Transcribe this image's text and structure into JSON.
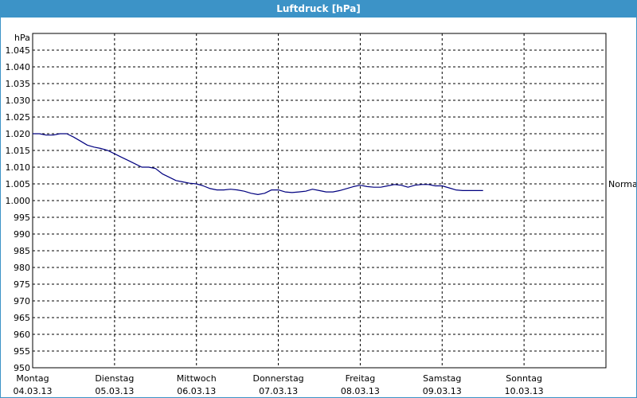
{
  "window": {
    "title": "Luftdruck [hPa]"
  },
  "colors": {
    "titlebar": "#3c93c7",
    "series": "#00007f",
    "grid": "#000000",
    "background": "#ffffff"
  },
  "chart_data": {
    "type": "line",
    "title": "Luftdruck [hPa]",
    "ylabel": "hPa",
    "xlabel": "",
    "ylim": [
      950,
      1050
    ],
    "yticks": [
      {
        "value": 950,
        "label": "950"
      },
      {
        "value": 955,
        "label": "955"
      },
      {
        "value": 960,
        "label": "960"
      },
      {
        "value": 965,
        "label": "965"
      },
      {
        "value": 970,
        "label": "970"
      },
      {
        "value": 975,
        "label": "975"
      },
      {
        "value": 980,
        "label": "980"
      },
      {
        "value": 985,
        "label": "985"
      },
      {
        "value": 990,
        "label": "990"
      },
      {
        "value": 995,
        "label": "995"
      },
      {
        "value": 1000,
        "label": "1.000"
      },
      {
        "value": 1005,
        "label": "1.005"
      },
      {
        "value": 1010,
        "label": "1.010"
      },
      {
        "value": 1015,
        "label": "1.015"
      },
      {
        "value": 1020,
        "label": "1.020"
      },
      {
        "value": 1025,
        "label": "1.025"
      },
      {
        "value": 1030,
        "label": "1.030"
      },
      {
        "value": 1035,
        "label": "1.035"
      },
      {
        "value": 1040,
        "label": "1.040"
      },
      {
        "value": 1045,
        "label": "1.045"
      }
    ],
    "xlim": [
      "04.03.13 00:00",
      "11.03.13 00:00"
    ],
    "xticks": [
      {
        "day": "Montag",
        "date": "04.03.13"
      },
      {
        "day": "Dienstag",
        "date": "05.03.13"
      },
      {
        "day": "Mittwoch",
        "date": "06.03.13"
      },
      {
        "day": "Donnerstag",
        "date": "07.03.13"
      },
      {
        "day": "Freitag",
        "date": "08.03.13"
      },
      {
        "day": "Samstag",
        "date": "09.03.13"
      },
      {
        "day": "Sonntag",
        "date": "10.03.13"
      }
    ],
    "grid": true,
    "reference": {
      "label": "Normal",
      "value": 1005
    },
    "series": [
      {
        "x": [
          "04.03.13 00:00",
          "04.03.13 02:00",
          "04.03.13 04:00",
          "04.03.13 06:00",
          "04.03.13 08:00",
          "04.03.13 10:00",
          "04.03.13 12:00",
          "04.03.13 14:00",
          "04.03.13 16:00",
          "04.03.13 18:00",
          "04.03.13 20:00",
          "04.03.13 22:00",
          "05.03.13 00:00",
          "05.03.13 02:00",
          "05.03.13 04:00",
          "05.03.13 06:00",
          "05.03.13 08:00",
          "05.03.13 10:00",
          "05.03.13 12:00",
          "05.03.13 14:00",
          "05.03.13 16:00",
          "05.03.13 18:00",
          "05.03.13 20:00",
          "05.03.13 22:00",
          "06.03.13 00:00",
          "06.03.13 02:00",
          "06.03.13 04:00",
          "06.03.13 06:00",
          "06.03.13 08:00",
          "06.03.13 10:00",
          "06.03.13 12:00",
          "06.03.13 14:00",
          "06.03.13 16:00",
          "06.03.13 18:00",
          "06.03.13 20:00",
          "06.03.13 22:00",
          "07.03.13 00:00",
          "07.03.13 02:00",
          "07.03.13 04:00",
          "07.03.13 06:00",
          "07.03.13 08:00",
          "07.03.13 10:00",
          "07.03.13 12:00",
          "07.03.13 14:00",
          "07.03.13 16:00",
          "07.03.13 18:00",
          "07.03.13 20:00",
          "07.03.13 22:00",
          "08.03.13 00:00",
          "08.03.13 02:00",
          "08.03.13 04:00",
          "08.03.13 06:00",
          "08.03.13 08:00",
          "08.03.13 10:00",
          "08.03.13 12:00",
          "08.03.13 14:00",
          "08.03.13 16:00",
          "08.03.13 18:00",
          "08.03.13 20:00",
          "08.03.13 22:00",
          "09.03.13 00:00",
          "09.03.13 02:00",
          "09.03.13 04:00",
          "09.03.13 06:00",
          "09.03.13 08:00",
          "09.03.13 10:00",
          "09.03.13 12:00"
        ],
        "y": [
          1020.0,
          1020.0,
          1019.6,
          1019.6,
          1020.0,
          1020.0,
          1019.0,
          1017.8,
          1016.6,
          1016.0,
          1015.6,
          1015.0,
          1014.0,
          1013.0,
          1012.0,
          1011.0,
          1010.0,
          1010.0,
          1009.6,
          1008.0,
          1007.0,
          1006.0,
          1005.6,
          1005.2,
          1005.0,
          1004.4,
          1003.6,
          1003.2,
          1003.2,
          1003.4,
          1003.2,
          1002.8,
          1002.2,
          1001.8,
          1002.2,
          1003.2,
          1003.2,
          1002.6,
          1002.4,
          1002.6,
          1002.8,
          1003.4,
          1003.0,
          1002.6,
          1002.6,
          1003.0,
          1003.6,
          1004.2,
          1004.6,
          1004.2,
          1004.0,
          1004.0,
          1004.4,
          1004.8,
          1004.6,
          1004.0,
          1004.6,
          1004.8,
          1004.8,
          1004.4,
          1004.4,
          1003.8,
          1003.2,
          1003.0,
          1003.0,
          1003.0,
          1003.0
        ]
      }
    ]
  }
}
